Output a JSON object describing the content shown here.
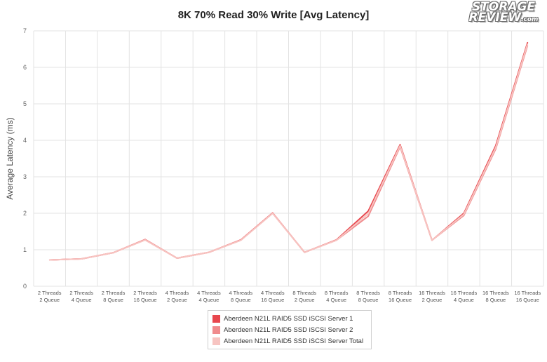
{
  "chart_data": {
    "type": "line",
    "title": "8K 70% Read 30% Write [Avg Latency]",
    "ylabel": "Average Latency (ms)",
    "xlabel": "",
    "ylim": [
      0,
      7
    ],
    "yticks": [
      0,
      1,
      2,
      3,
      4,
      5,
      6,
      7
    ],
    "grid": true,
    "legend_placement": "bottom",
    "categories": [
      [
        "2 Threads",
        "2 Queue"
      ],
      [
        "2 Threads",
        "4 Queue"
      ],
      [
        "2 Threads",
        "8 Queue"
      ],
      [
        "2 Threads",
        "16 Queue"
      ],
      [
        "4 Threads",
        "2 Queue"
      ],
      [
        "4 Threads",
        "4 Queue"
      ],
      [
        "4 Threads",
        "8 Queue"
      ],
      [
        "4 Threads",
        "16 Queue"
      ],
      [
        "8 Threads",
        "2 Queue"
      ],
      [
        "8 Threads",
        "4 Queue"
      ],
      [
        "8 Threads",
        "8 Queue"
      ],
      [
        "8 Threads",
        "16 Queue"
      ],
      [
        "16 Threads",
        "2 Queue"
      ],
      [
        "16 Threads",
        "4 Queue"
      ],
      [
        "16 Threads",
        "8 Queue"
      ],
      [
        "16 Threads",
        "16 Queue"
      ]
    ],
    "series": [
      {
        "name": "Aberdeen N21L RAID5 SSD iSCSI Server 1",
        "color": "#e8474e",
        "values": [
          0.72,
          0.75,
          0.92,
          1.28,
          0.77,
          0.93,
          1.27,
          2.01,
          0.93,
          1.27,
          2.06,
          3.88,
          1.26,
          2.0,
          3.85,
          6.68
        ]
      },
      {
        "name": "Aberdeen N21L RAID5 SSD iSCSI Server 2",
        "color": "#f08b8d",
        "values": [
          0.72,
          0.75,
          0.92,
          1.27,
          0.77,
          0.93,
          1.26,
          2.0,
          0.93,
          1.26,
          1.92,
          3.82,
          1.26,
          1.94,
          3.76,
          6.6
        ]
      },
      {
        "name": "Aberdeen N21L RAID5 SSD iSCSI Server Total",
        "color": "#f7c4c1",
        "values": [
          0.72,
          0.75,
          0.92,
          1.27,
          0.77,
          0.93,
          1.26,
          2.0,
          0.93,
          1.26,
          1.99,
          3.85,
          1.26,
          1.97,
          3.8,
          6.64
        ]
      }
    ]
  },
  "logo": {
    "line1": "STORAGE",
    "line2": "REVIEW",
    "suffix": ".com"
  }
}
